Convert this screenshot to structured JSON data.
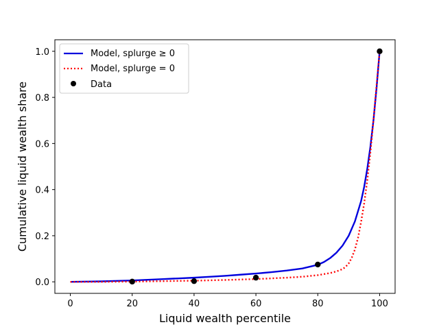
{
  "chart_data": {
    "type": "line",
    "xlabel": "Liquid wealth percentile",
    "ylabel": "Cumulative liquid wealth share",
    "xlim": [
      -5,
      105
    ],
    "ylim": [
      -0.05,
      1.05
    ],
    "x_ticks": [
      0,
      20,
      40,
      60,
      80,
      100
    ],
    "y_ticks": [
      0.0,
      0.2,
      0.4,
      0.6,
      0.8,
      1.0
    ],
    "x_tick_labels": [
      "0",
      "20",
      "40",
      "60",
      "80",
      "100"
    ],
    "y_tick_labels": [
      "0.0",
      "0.2",
      "0.4",
      "0.6",
      "0.8",
      "1.0"
    ],
    "grid": false,
    "legend_position": "top-left",
    "series": [
      {
        "name": "Model, splurge ≥ 0",
        "style": "solid",
        "color": "#0000dd",
        "x": [
          0,
          5,
          10,
          15,
          20,
          25,
          30,
          35,
          40,
          45,
          50,
          55,
          60,
          65,
          70,
          75,
          80,
          82,
          84,
          86,
          88,
          90,
          92,
          94,
          95,
          96,
          97,
          98,
          99,
          100
        ],
        "y": [
          0.0,
          0.001,
          0.002,
          0.004,
          0.006,
          0.009,
          0.012,
          0.015,
          0.018,
          0.022,
          0.026,
          0.031,
          0.036,
          0.042,
          0.049,
          0.058,
          0.074,
          0.086,
          0.103,
          0.126,
          0.157,
          0.2,
          0.262,
          0.35,
          0.412,
          0.49,
          0.585,
          0.7,
          0.84,
          1.0
        ]
      },
      {
        "name": "Model, splurge = 0",
        "style": "dotted",
        "color": "#ff0000",
        "x": [
          0,
          10,
          20,
          30,
          40,
          50,
          60,
          70,
          75,
          80,
          84,
          86,
          88,
          89,
          90,
          91,
          92,
          93,
          94,
          95,
          96,
          97,
          98,
          99,
          100
        ],
        "y": [
          0.0,
          0.0,
          0.001,
          0.003,
          0.005,
          0.008,
          0.012,
          0.018,
          0.022,
          0.029,
          0.038,
          0.045,
          0.055,
          0.065,
          0.08,
          0.105,
          0.14,
          0.19,
          0.26,
          0.34,
          0.44,
          0.56,
          0.7,
          0.85,
          1.0
        ]
      },
      {
        "name": "Data",
        "style": "markers",
        "color": "#000000",
        "x": [
          20,
          40,
          60,
          80,
          100
        ],
        "y": [
          0.001,
          0.003,
          0.018,
          0.075,
          1.0
        ]
      }
    ]
  }
}
